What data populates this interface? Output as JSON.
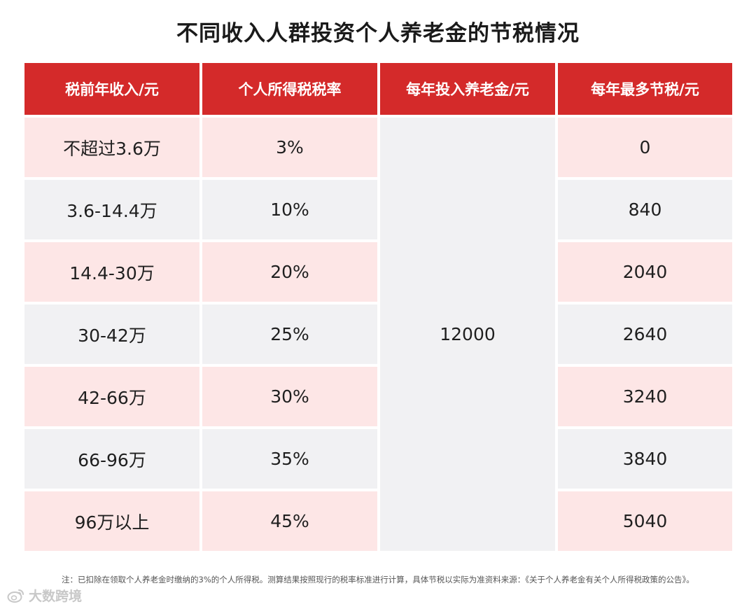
{
  "title": "不同收入人群投资个人养老金的节税情况",
  "table": {
    "headers": [
      "税前年收入/元",
      "个人所得税税率",
      "每年投入养老金/元",
      "每年最多节税/元"
    ],
    "rows": [
      {
        "income": "不超过3.6万",
        "rate": "3%",
        "saving": "0"
      },
      {
        "income": "3.6-14.4万",
        "rate": "10%",
        "saving": "840"
      },
      {
        "income": "14.4-30万",
        "rate": "20%",
        "saving": "2040"
      },
      {
        "income": "30-42万",
        "rate": "25%",
        "saving": "2640"
      },
      {
        "income": "42-66万",
        "rate": "30%",
        "saving": "3240"
      },
      {
        "income": "66-96万",
        "rate": "35%",
        "saving": "3840"
      },
      {
        "income": "96万以上",
        "rate": "45%",
        "saving": "5040"
      }
    ],
    "investment": "12000"
  },
  "footnote": "注：已扣除在领取个人养老金时缴纳的3%的个人所得税。测算结果按照现行的税率标准进行计算，具体节税以实际为准资料来源：《关于个人养老金有关个人所得税政策的公告》。",
  "watermark": {
    "text": "大数跨境",
    "icon": "weibo-logo-icon"
  },
  "colors": {
    "header": "#d42a2a",
    "row_pink": "#fde6e6",
    "row_grey": "#f1f1f3"
  }
}
